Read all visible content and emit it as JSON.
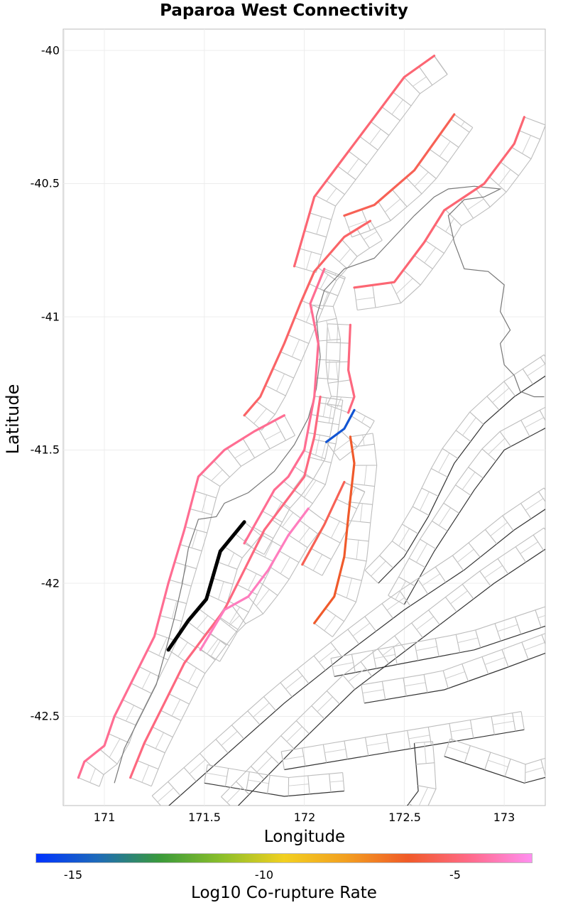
{
  "title": "Paparoa West Connectivity",
  "x_axis": {
    "label": "Longitude",
    "ticks": [
      "171",
      "171.5",
      "172",
      "172.5",
      "173"
    ]
  },
  "y_axis": {
    "label": "Latitude",
    "ticks": [
      "-40",
      "-40.5",
      "-41",
      "-41.5",
      "-42",
      "-42.5"
    ]
  },
  "colorbar": {
    "label": "Log10 Co-rupture Rate",
    "ticks": [
      "-15",
      "-10",
      "-5"
    ],
    "colors": [
      "#0033ff",
      "#1e6bb8",
      "#3a9a3a",
      "#8cbf2a",
      "#f2d020",
      "#f29f20",
      "#f05a28",
      "#ff6a8a",
      "#ff8ff0"
    ]
  },
  "colors": {
    "source_fault": "#000000",
    "coastline": "#777777",
    "section_grid": "#bdbdbd",
    "other_faults": "#333333"
  },
  "map_data": {
    "extent": {
      "lon": [
        170.8,
        173.2
      ],
      "lat": [
        -42.85,
        -39.93
      ]
    },
    "source_fault": {
      "name": "Paparoa West",
      "trace": [
        [
          171.32,
          -42.25
        ],
        [
          171.42,
          -42.14
        ],
        [
          171.51,
          -42.06
        ],
        [
          171.58,
          -41.88
        ],
        [
          171.7,
          -41.77
        ]
      ]
    },
    "faults": [
      {
        "name": "fault-a",
        "log10_rate": -4.5,
        "trace": [
          [
            170.87,
            -42.73
          ],
          [
            170.9,
            -42.67
          ],
          [
            171.0,
            -42.61
          ],
          [
            171.05,
            -42.5
          ],
          [
            171.15,
            -42.35
          ],
          [
            171.25,
            -42.2
          ],
          [
            171.32,
            -42.0
          ],
          [
            171.4,
            -41.8
          ],
          [
            171.47,
            -41.6
          ],
          [
            171.6,
            -41.5
          ],
          [
            171.75,
            -41.43
          ],
          [
            171.9,
            -41.37
          ]
        ]
      },
      {
        "name": "fault-b",
        "log10_rate": -5.2,
        "trace": [
          [
            171.7,
            -41.37
          ],
          [
            171.78,
            -41.3
          ],
          [
            171.9,
            -41.1
          ],
          [
            171.98,
            -40.95
          ],
          [
            172.05,
            -40.83
          ],
          [
            172.2,
            -40.7
          ],
          [
            172.33,
            -40.64
          ]
        ]
      },
      {
        "name": "fault-c",
        "log10_rate": -5.0,
        "trace": [
          [
            171.95,
            -40.81
          ],
          [
            172.05,
            -40.55
          ],
          [
            172.2,
            -40.4
          ],
          [
            172.35,
            -40.25
          ],
          [
            172.5,
            -40.1
          ],
          [
            172.65,
            -40.02
          ]
        ]
      },
      {
        "name": "fault-d",
        "log10_rate": -5.5,
        "trace": [
          [
            172.2,
            -40.62
          ],
          [
            172.35,
            -40.58
          ],
          [
            172.55,
            -40.45
          ],
          [
            172.75,
            -40.24
          ]
        ]
      },
      {
        "name": "fault-e",
        "log10_rate": -5.0,
        "trace": [
          [
            172.25,
            -40.89
          ],
          [
            172.45,
            -40.87
          ],
          [
            172.6,
            -40.72
          ],
          [
            172.7,
            -40.6
          ],
          [
            172.9,
            -40.5
          ],
          [
            173.05,
            -40.35
          ],
          [
            173.1,
            -40.25
          ]
        ]
      },
      {
        "name": "fault-f",
        "log10_rate": -4.8,
        "trace": [
          [
            172.23,
            -41.03
          ],
          [
            172.22,
            -41.2
          ],
          [
            172.25,
            -41.3
          ],
          [
            172.22,
            -41.36
          ]
        ]
      },
      {
        "name": "fault-g",
        "log10_rate": -4.5,
        "trace": [
          [
            171.7,
            -41.85
          ],
          [
            171.85,
            -41.65
          ],
          [
            171.92,
            -41.6
          ],
          [
            172.0,
            -41.5
          ],
          [
            172.05,
            -41.3
          ],
          [
            172.07,
            -41.1
          ],
          [
            172.03,
            -40.95
          ],
          [
            172.1,
            -40.82
          ]
        ]
      },
      {
        "name": "fault-h",
        "log10_rate": -4.8,
        "trace": [
          [
            171.13,
            -42.73
          ],
          [
            171.2,
            -42.6
          ],
          [
            171.3,
            -42.45
          ],
          [
            171.4,
            -42.3
          ],
          [
            171.5,
            -42.2
          ],
          [
            171.6,
            -42.1
          ],
          [
            171.7,
            -41.95
          ],
          [
            171.8,
            -41.8
          ],
          [
            171.9,
            -41.7
          ],
          [
            172.0,
            -41.6
          ],
          [
            172.05,
            -41.45
          ],
          [
            172.08,
            -41.3
          ]
        ]
      },
      {
        "name": "fault-i",
        "log10_rate": -3.8,
        "trace": [
          [
            171.48,
            -42.25
          ],
          [
            171.6,
            -42.1
          ],
          [
            171.72,
            -42.05
          ],
          [
            171.82,
            -41.95
          ],
          [
            171.92,
            -41.82
          ],
          [
            172.02,
            -41.72
          ]
        ]
      },
      {
        "name": "fault-j",
        "log10_rate": -5.5,
        "trace": [
          [
            171.99,
            -41.93
          ],
          [
            172.1,
            -41.78
          ],
          [
            172.15,
            -41.7
          ],
          [
            172.2,
            -41.62
          ]
        ]
      },
      {
        "name": "fault-k",
        "log10_rate": -6.2,
        "trace": [
          [
            172.05,
            -42.15
          ],
          [
            172.15,
            -42.05
          ],
          [
            172.2,
            -41.9
          ],
          [
            172.22,
            -41.75
          ],
          [
            172.25,
            -41.55
          ],
          [
            172.23,
            -41.45
          ]
        ]
      },
      {
        "name": "fault-l",
        "log10_rate": -15.0,
        "trace": [
          [
            172.11,
            -41.47
          ],
          [
            172.2,
            -41.42
          ],
          [
            172.25,
            -41.35
          ]
        ]
      }
    ]
  }
}
